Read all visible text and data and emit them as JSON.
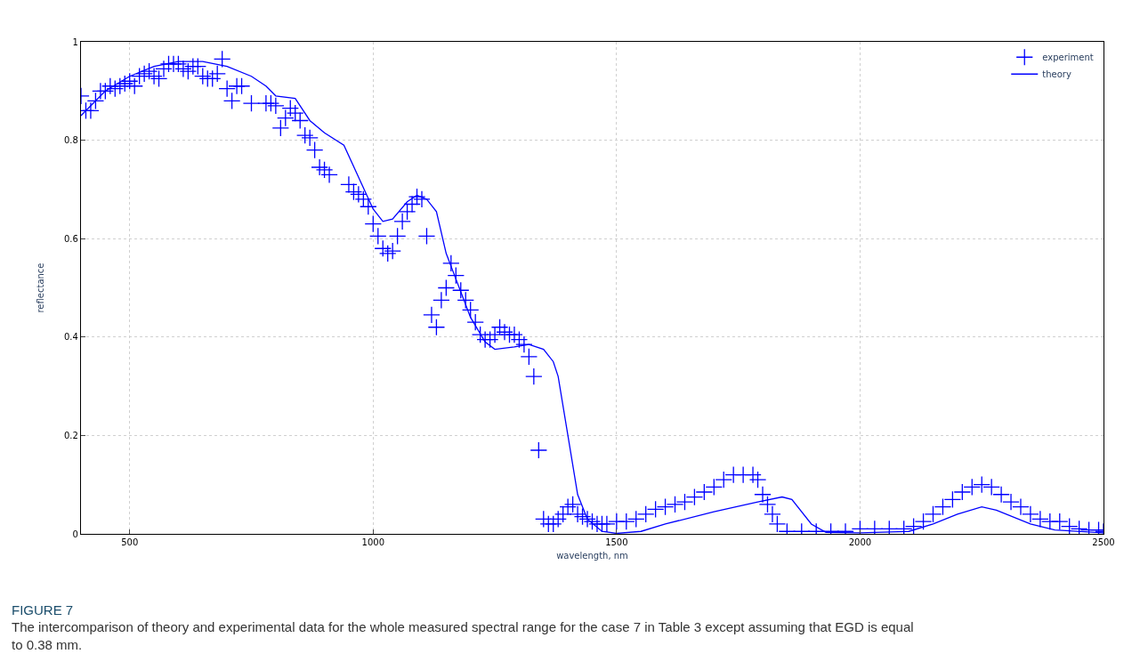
{
  "chart_data": {
    "type": "scatter",
    "xlabel": "wavelength, nm",
    "ylabel": "reflectance",
    "xlim": [
      400,
      2500
    ],
    "xticks": [
      500,
      1000,
      1500,
      2000,
      2500
    ],
    "ylim": [
      0,
      1
    ],
    "yticks": [
      0,
      0.2,
      0.4,
      0.6,
      0.8,
      1
    ],
    "grid": true,
    "legend": "top right",
    "annotations": [
      "FIGURE 7",
      "The intercomparison of theory and experimental data for the whole measured spectral range for the case 7 in Table 3 except assuming that EGD is equal to 0.38 mm."
    ],
    "series": [
      {
        "name": "experiment",
        "marker": "cross",
        "color": "#0000ff",
        "x": [
          400,
          410,
          420,
          430,
          440,
          450,
          460,
          470,
          480,
          490,
          500,
          510,
          520,
          530,
          540,
          550,
          560,
          570,
          580,
          590,
          600,
          610,
          620,
          630,
          640,
          650,
          660,
          670,
          680,
          690,
          700,
          710,
          720,
          730,
          750,
          780,
          790,
          800,
          810,
          820,
          830,
          840,
          850,
          860,
          870,
          880,
          890,
          900,
          910,
          950,
          960,
          970,
          980,
          990,
          1000,
          1010,
          1020,
          1030,
          1040,
          1050,
          1060,
          1070,
          1080,
          1090,
          1100,
          1110,
          1120,
          1130,
          1140,
          1150,
          1160,
          1170,
          1180,
          1190,
          1200,
          1210,
          1220,
          1230,
          1240,
          1250,
          1260,
          1270,
          1280,
          1290,
          1300,
          1310,
          1320,
          1330,
          1340,
          1350,
          1360,
          1370,
          1380,
          1390,
          1400,
          1410,
          1420,
          1430,
          1440,
          1450,
          1460,
          1470,
          1480,
          1500,
          1520,
          1540,
          1560,
          1580,
          1600,
          1620,
          1640,
          1660,
          1680,
          1700,
          1720,
          1740,
          1760,
          1780,
          1790,
          1800,
          1810,
          1820,
          1830,
          1850,
          1880,
          1910,
          1940,
          1970,
          2000,
          2030,
          2060,
          2090,
          2110,
          2130,
          2150,
          2170,
          2190,
          2210,
          2230,
          2250,
          2270,
          2290,
          2310,
          2330,
          2350,
          2370,
          2390,
          2410,
          2430,
          2450,
          2470,
          2490,
          2500
        ],
        "values": [
          0.89,
          0.86,
          0.86,
          0.88,
          0.9,
          0.9,
          0.91,
          0.905,
          0.91,
          0.915,
          0.92,
          0.91,
          0.93,
          0.935,
          0.94,
          0.93,
          0.925,
          0.945,
          0.955,
          0.955,
          0.955,
          0.945,
          0.94,
          0.95,
          0.95,
          0.93,
          0.925,
          0.925,
          0.935,
          0.965,
          0.905,
          0.88,
          0.91,
          0.91,
          0.875,
          0.875,
          0.875,
          0.87,
          0.825,
          0.845,
          0.865,
          0.855,
          0.84,
          0.81,
          0.805,
          0.78,
          0.745,
          0.74,
          0.73,
          0.71,
          0.695,
          0.69,
          0.68,
          0.665,
          0.63,
          0.605,
          0.58,
          0.57,
          0.575,
          0.605,
          0.635,
          0.655,
          0.67,
          0.685,
          0.68,
          0.605,
          0.445,
          0.42,
          0.475,
          0.5,
          0.55,
          0.525,
          0.495,
          0.475,
          0.455,
          0.43,
          0.405,
          0.395,
          0.395,
          0.405,
          0.42,
          0.41,
          0.405,
          0.405,
          0.395,
          0.385,
          0.36,
          0.32,
          0.17,
          0.03,
          0.02,
          0.02,
          0.03,
          0.04,
          0.055,
          0.06,
          0.04,
          0.035,
          0.03,
          0.025,
          0.02,
          0.02,
          0.02,
          0.025,
          0.025,
          0.03,
          0.04,
          0.05,
          0.055,
          0.06,
          0.065,
          0.075,
          0.085,
          0.095,
          0.11,
          0.12,
          0.12,
          0.12,
          0.11,
          0.08,
          0.06,
          0.04,
          0.02,
          0.005,
          0.005,
          0.005,
          0.005,
          0.005,
          0.01,
          0.01,
          0.01,
          0.01,
          0.015,
          0.025,
          0.04,
          0.055,
          0.07,
          0.085,
          0.095,
          0.1,
          0.095,
          0.08,
          0.065,
          0.055,
          0.04,
          0.03,
          0.025,
          0.025,
          0.015,
          0.01,
          0.008,
          0.008,
          0.005
        ]
      },
      {
        "name": "theory",
        "type": "line",
        "line_style": "solid",
        "color": "#0000ff",
        "x": [
          400,
          450,
          500,
          550,
          600,
          650,
          700,
          750,
          780,
          800,
          840,
          870,
          900,
          940,
          1000,
          1020,
          1040,
          1070,
          1090,
          1110,
          1130,
          1150,
          1200,
          1230,
          1250,
          1290,
          1320,
          1350,
          1370,
          1380,
          1400,
          1420,
          1440,
          1470,
          1500,
          1550,
          1600,
          1700,
          1790,
          1840,
          1860,
          1900,
          1930,
          2000,
          2100,
          2150,
          2200,
          2250,
          2280,
          2350,
          2400,
          2500
        ],
        "values": [
          0.85,
          0.9,
          0.93,
          0.95,
          0.96,
          0.96,
          0.95,
          0.93,
          0.91,
          0.89,
          0.885,
          0.84,
          0.815,
          0.79,
          0.66,
          0.635,
          0.64,
          0.675,
          0.688,
          0.68,
          0.655,
          0.57,
          0.44,
          0.39,
          0.375,
          0.38,
          0.385,
          0.375,
          0.35,
          0.32,
          0.2,
          0.08,
          0.03,
          0.005,
          0.001,
          0.005,
          0.02,
          0.045,
          0.065,
          0.075,
          0.07,
          0.02,
          0.003,
          0.002,
          0.005,
          0.02,
          0.04,
          0.055,
          0.048,
          0.02,
          0.008,
          0.002
        ]
      }
    ]
  }
}
